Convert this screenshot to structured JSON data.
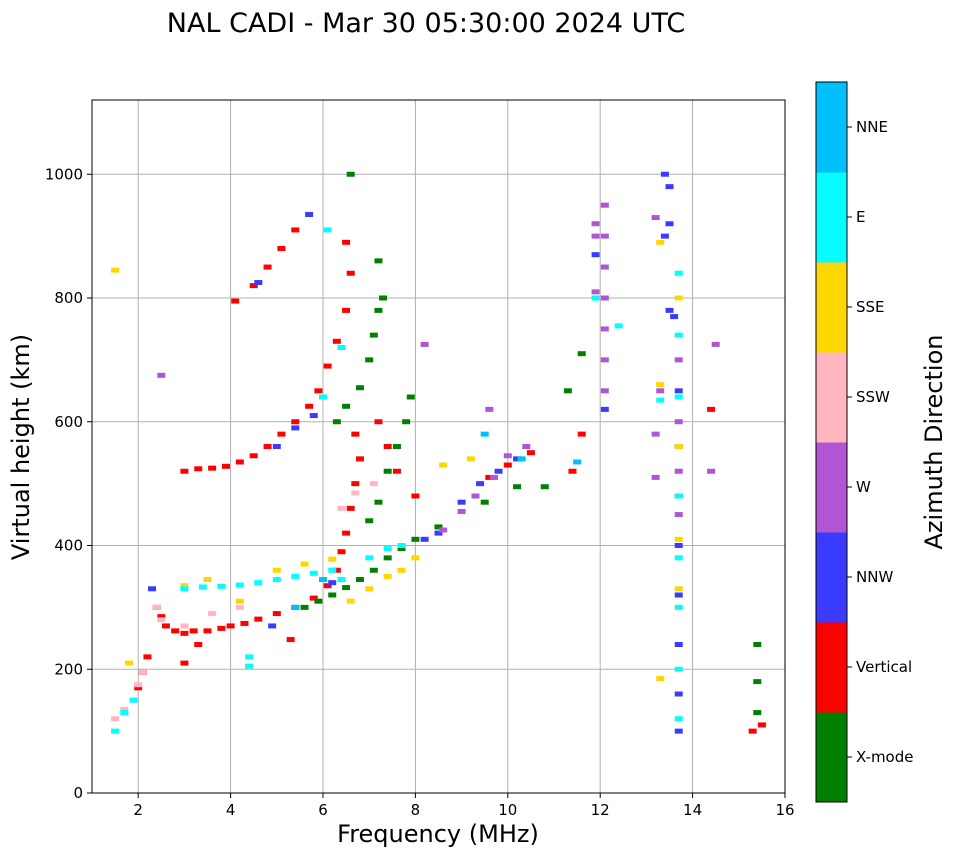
{
  "chart_data": {
    "type": "scatter",
    "subtype": "ionogram",
    "title": "NAL CADI - Mar 30 05:30:00 2024 UTC",
    "xlabel": "Frequency (MHz)",
    "ylabel": "Virtual height (km)",
    "xlim": [
      1,
      16
    ],
    "ylim": [
      0,
      1120
    ],
    "xticks": [
      2,
      4,
      6,
      8,
      10,
      12,
      14,
      16
    ],
    "yticks": [
      0,
      200,
      400,
      600,
      800,
      1000
    ],
    "grid": true,
    "colorbar": {
      "label": "Azimuth Direction",
      "categories": [
        "X-mode",
        "Vertical",
        "NNW",
        "W",
        "SSW",
        "SSE",
        "E",
        "NNE"
      ],
      "colors": [
        "#008000",
        "#ff0000",
        "#3b3bff",
        "#b056d4",
        "#ffb6c1",
        "#ffd700",
        "#00ffff",
        "#00bfff"
      ]
    },
    "series": [
      {
        "name": "Vertical",
        "points": [
          [
            2.0,
            170
          ],
          [
            2.1,
            195
          ],
          [
            2.2,
            220
          ],
          [
            2.4,
            300
          ],
          [
            2.5,
            285
          ],
          [
            2.6,
            270
          ],
          [
            2.8,
            262
          ],
          [
            3.0,
            258
          ],
          [
            3.2,
            262
          ],
          [
            3.5,
            262
          ],
          [
            3.8,
            266
          ],
          [
            4.0,
            270
          ],
          [
            4.3,
            274
          ],
          [
            4.6,
            281
          ],
          [
            5.0,
            290
          ],
          [
            5.4,
            300
          ],
          [
            5.8,
            315
          ],
          [
            6.1,
            335
          ],
          [
            6.3,
            360
          ],
          [
            6.4,
            390
          ],
          [
            6.5,
            420
          ],
          [
            6.6,
            460
          ],
          [
            6.7,
            500
          ],
          [
            6.8,
            540
          ],
          [
            6.7,
            580
          ],
          [
            3.0,
            520
          ],
          [
            3.3,
            524
          ],
          [
            3.6,
            525
          ],
          [
            3.9,
            528
          ],
          [
            4.2,
            535
          ],
          [
            4.5,
            545
          ],
          [
            4.8,
            560
          ],
          [
            5.1,
            580
          ],
          [
            5.4,
            600
          ],
          [
            5.7,
            625
          ],
          [
            5.9,
            650
          ],
          [
            6.1,
            690
          ],
          [
            6.3,
            730
          ],
          [
            6.5,
            780
          ],
          [
            6.6,
            840
          ],
          [
            6.5,
            890
          ],
          [
            4.1,
            795
          ],
          [
            4.5,
            820
          ],
          [
            4.8,
            850
          ],
          [
            5.1,
            880
          ],
          [
            5.4,
            910
          ],
          [
            7.2,
            600
          ],
          [
            7.4,
            560
          ],
          [
            7.6,
            520
          ],
          [
            8.0,
            480
          ],
          [
            9.6,
            510
          ],
          [
            10.0,
            530
          ],
          [
            10.5,
            550
          ],
          [
            11.4,
            520
          ],
          [
            11.6,
            580
          ],
          [
            14.4,
            620
          ],
          [
            15.3,
            100
          ],
          [
            15.5,
            110
          ],
          [
            3.0,
            210
          ],
          [
            3.3,
            240
          ],
          [
            5.3,
            248
          ]
        ]
      },
      {
        "name": "X-mode",
        "points": [
          [
            5.6,
            300
          ],
          [
            5.9,
            310
          ],
          [
            6.2,
            320
          ],
          [
            6.5,
            332
          ],
          [
            6.8,
            345
          ],
          [
            7.1,
            360
          ],
          [
            7.4,
            380
          ],
          [
            7.7,
            395
          ],
          [
            8.0,
            410
          ],
          [
            6.3,
            600
          ],
          [
            6.5,
            625
          ],
          [
            6.8,
            655
          ],
          [
            7.0,
            700
          ],
          [
            7.1,
            740
          ],
          [
            7.2,
            780
          ],
          [
            7.3,
            800
          ],
          [
            7.0,
            440
          ],
          [
            7.2,
            470
          ],
          [
            7.4,
            520
          ],
          [
            7.6,
            560
          ],
          [
            7.8,
            600
          ],
          [
            7.9,
            640
          ],
          [
            8.5,
            430
          ],
          [
            9.5,
            470
          ],
          [
            10.2,
            495
          ],
          [
            10.8,
            495
          ],
          [
            11.3,
            650
          ],
          [
            11.6,
            710
          ],
          [
            6.6,
            1000
          ],
          [
            7.2,
            860
          ],
          [
            15.4,
            180
          ],
          [
            15.4,
            240
          ],
          [
            15.4,
            130
          ]
        ]
      },
      {
        "name": "NNW",
        "points": [
          [
            2.3,
            330
          ],
          [
            4.9,
            270
          ],
          [
            5.0,
            560
          ],
          [
            5.4,
            590
          ],
          [
            5.8,
            610
          ],
          [
            6.2,
            340
          ],
          [
            8.2,
            410
          ],
          [
            8.5,
            420
          ],
          [
            9.0,
            470
          ],
          [
            9.4,
            500
          ],
          [
            9.8,
            520
          ],
          [
            10.2,
            540
          ],
          [
            13.4,
            1000
          ],
          [
            13.5,
            980
          ],
          [
            13.5,
            920
          ],
          [
            13.4,
            900
          ],
          [
            13.5,
            780
          ],
          [
            13.6,
            770
          ],
          [
            13.7,
            650
          ],
          [
            13.7,
            560
          ],
          [
            13.7,
            480
          ],
          [
            13.7,
            400
          ],
          [
            13.7,
            320
          ],
          [
            13.7,
            240
          ],
          [
            13.7,
            160
          ],
          [
            13.7,
            100
          ],
          [
            11.9,
            870
          ],
          [
            12.1,
            620
          ],
          [
            4.6,
            825
          ],
          [
            5.7,
            935
          ]
        ]
      },
      {
        "name": "W",
        "points": [
          [
            8.6,
            425
          ],
          [
            9.0,
            455
          ],
          [
            9.3,
            480
          ],
          [
            9.7,
            510
          ],
          [
            10.0,
            545
          ],
          [
            10.4,
            560
          ],
          [
            9.6,
            620
          ],
          [
            12.1,
            950
          ],
          [
            12.1,
            900
          ],
          [
            12.1,
            850
          ],
          [
            12.1,
            800
          ],
          [
            12.1,
            750
          ],
          [
            12.1,
            700
          ],
          [
            12.1,
            650
          ],
          [
            11.9,
            920
          ],
          [
            11.9,
            900
          ],
          [
            11.9,
            810
          ],
          [
            13.2,
            930
          ],
          [
            13.3,
            650
          ],
          [
            13.2,
            580
          ],
          [
            13.2,
            510
          ],
          [
            13.7,
            700
          ],
          [
            13.7,
            600
          ],
          [
            13.7,
            520
          ],
          [
            13.7,
            450
          ],
          [
            14.4,
            520
          ],
          [
            14.5,
            725
          ],
          [
            8.2,
            725
          ],
          [
            2.5,
            675
          ]
        ]
      },
      {
        "name": "SSW",
        "points": [
          [
            1.5,
            120
          ],
          [
            1.7,
            135
          ],
          [
            1.9,
            150
          ],
          [
            2.0,
            175
          ],
          [
            2.1,
            195
          ],
          [
            2.4,
            300
          ],
          [
            2.5,
            280
          ],
          [
            3.0,
            270
          ],
          [
            3.6,
            290
          ],
          [
            4.2,
            300
          ],
          [
            6.4,
            460
          ],
          [
            6.7,
            485
          ],
          [
            7.1,
            500
          ]
        ]
      },
      {
        "name": "SSE",
        "points": [
          [
            1.5,
            845
          ],
          [
            1.8,
            210
          ],
          [
            3.0,
            335
          ],
          [
            3.5,
            345
          ],
          [
            4.2,
            310
          ],
          [
            5.0,
            360
          ],
          [
            5.6,
            370
          ],
          [
            6.2,
            378
          ],
          [
            6.6,
            310
          ],
          [
            7.0,
            330
          ],
          [
            7.4,
            350
          ],
          [
            7.7,
            360
          ],
          [
            8.0,
            380
          ],
          [
            8.6,
            530
          ],
          [
            9.2,
            540
          ],
          [
            13.3,
            890
          ],
          [
            13.3,
            660
          ],
          [
            13.3,
            185
          ],
          [
            13.7,
            800
          ],
          [
            13.7,
            560
          ],
          [
            13.7,
            410
          ],
          [
            13.7,
            330
          ]
        ]
      },
      {
        "name": "E",
        "points": [
          [
            1.5,
            100
          ],
          [
            1.7,
            130
          ],
          [
            1.9,
            150
          ],
          [
            3.0,
            330
          ],
          [
            3.4,
            333
          ],
          [
            3.8,
            334
          ],
          [
            4.2,
            336
          ],
          [
            4.6,
            340
          ],
          [
            5.0,
            345
          ],
          [
            5.4,
            350
          ],
          [
            5.8,
            355
          ],
          [
            6.2,
            360
          ],
          [
            6.4,
            345
          ],
          [
            7.0,
            380
          ],
          [
            7.4,
            395
          ],
          [
            7.7,
            400
          ],
          [
            6.1,
            910
          ],
          [
            6.0,
            640
          ],
          [
            11.9,
            800
          ],
          [
            12.4,
            755
          ],
          [
            13.3,
            635
          ],
          [
            13.7,
            840
          ],
          [
            13.7,
            740
          ],
          [
            13.7,
            640
          ],
          [
            13.7,
            480
          ],
          [
            13.7,
            380
          ],
          [
            13.7,
            300
          ],
          [
            13.7,
            200
          ],
          [
            13.7,
            120
          ],
          [
            4.4,
            220
          ],
          [
            4.4,
            205
          ],
          [
            6.4,
            720
          ]
        ]
      },
      {
        "name": "NNE",
        "points": [
          [
            5.4,
            300
          ],
          [
            6.0,
            345
          ],
          [
            9.5,
            580
          ],
          [
            10.3,
            540
          ],
          [
            11.5,
            535
          ]
        ]
      }
    ]
  }
}
